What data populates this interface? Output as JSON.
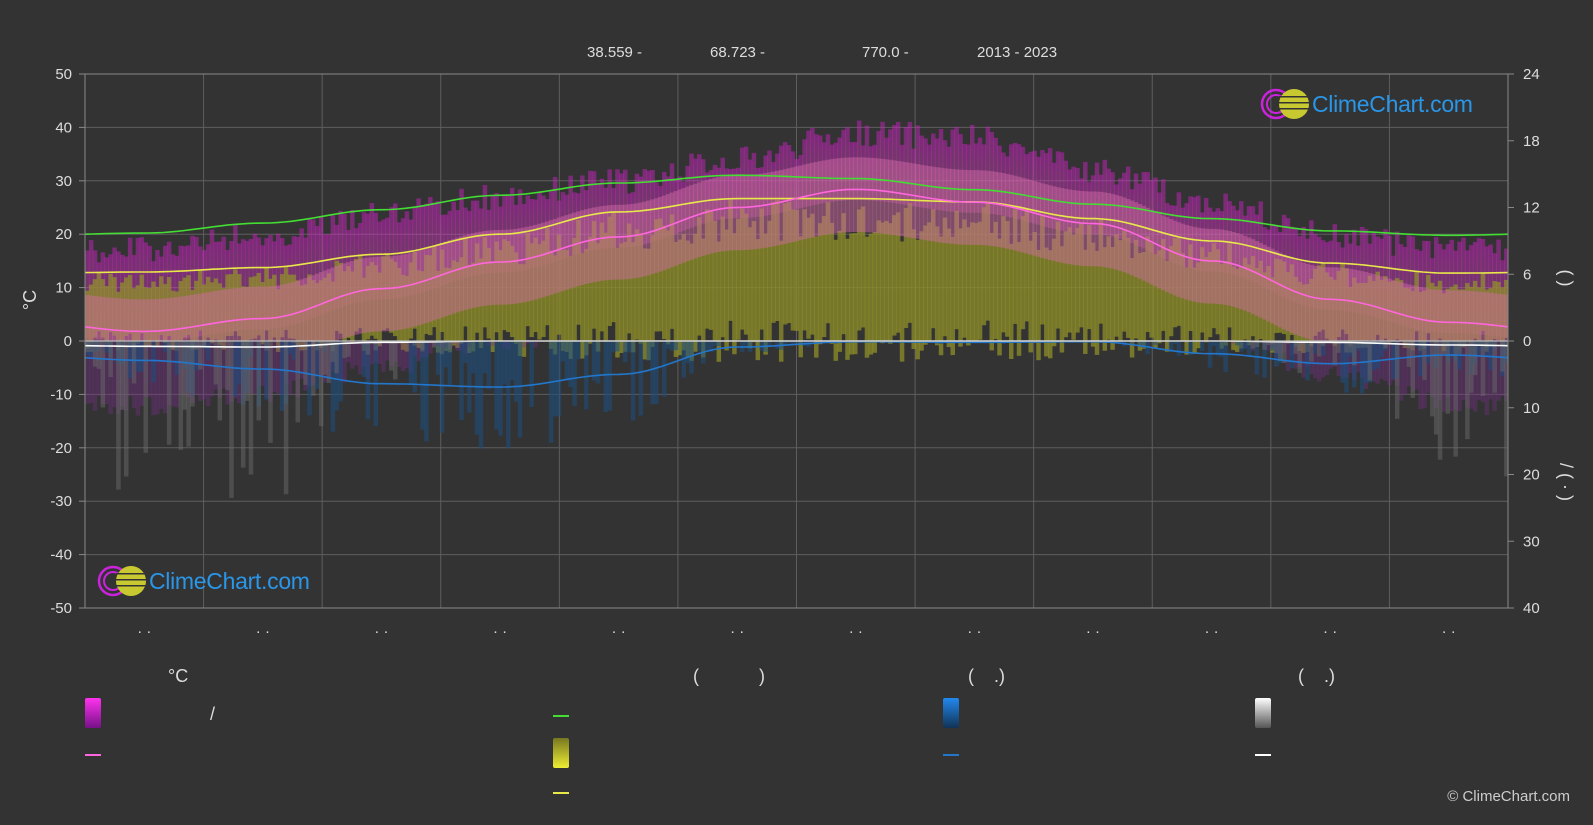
{
  "header": {
    "lat": "38.559 -",
    "lon": "68.723 -",
    "elevation": "770.0 -",
    "years": "2013 - 2023"
  },
  "axes": {
    "left_title": "°C",
    "right_top_title": "(    )",
    "right_bottom_title": "/    (  ·  )"
  },
  "brand": {
    "name": "ClimeChart.com",
    "copyright": "© ClimeChart.com"
  },
  "colors": {
    "background": "#333333",
    "grid": "#5e5e5e",
    "daylight": "#44dd33",
    "sunshine": "#e8e84a",
    "temp_max_band": "#e020c8",
    "temp_mean": "#ff66dd",
    "precip": "#2277cc",
    "snow": "#ffffff",
    "brand": "#2a96e8"
  },
  "legend": {
    "col1": {
      "heading": "°C",
      "item1": "                    /",
      "item2": ""
    },
    "col2": {
      "heading": "(            )",
      "item1": "",
      "item2": "",
      "item3": ""
    },
    "col3": {
      "heading": "(    .)",
      "item1": "",
      "item2": ""
    },
    "col4": {
      "heading": "(    .)",
      "item1": "",
      "item2": ""
    }
  },
  "chart_data": {
    "type": "line",
    "months": [
      "· ·",
      "· ·",
      "· ·",
      "· ·",
      "· ·",
      "· ·",
      "· ·",
      "· ·",
      "· ·",
      "· ·",
      "· ·",
      "· ·"
    ],
    "y_left": {
      "min": -50,
      "max": 50,
      "ticks": [
        50,
        40,
        30,
        20,
        10,
        0,
        -10,
        -20,
        -30,
        -40,
        -50
      ],
      "unit": "°C"
    },
    "y_right_top": {
      "ticks": [
        24,
        18,
        12,
        6,
        0
      ]
    },
    "y_right_bottom": {
      "ticks": [
        10,
        20,
        30,
        40
      ]
    },
    "series": [
      {
        "key": "daylight_hours",
        "values": [
          9.7,
          10.6,
          11.8,
          13.1,
          14.2,
          14.9,
          14.6,
          13.6,
          12.3,
          11.0,
          9.9,
          9.5
        ]
      },
      {
        "key": "sunshine_hours",
        "values": [
          6.2,
          6.6,
          7.8,
          9.6,
          11.6,
          12.8,
          12.8,
          12.5,
          11.0,
          9.0,
          7.0,
          6.1
        ]
      },
      {
        "key": "temp_mean",
        "values": [
          1.8,
          4.2,
          9.8,
          14.8,
          19.5,
          25.0,
          28.4,
          26.0,
          22.0,
          15.0,
          7.8,
          3.5
        ]
      },
      {
        "key": "precip_mm",
        "values": [
          2.9,
          4.2,
          6.4,
          6.9,
          5.0,
          0.9,
          0.1,
          0.2,
          0.1,
          1.9,
          3.4,
          2.1
        ]
      },
      {
        "key": "snow_mm",
        "values": [
          0.8,
          0.9,
          0.2,
          0.0,
          0.0,
          0.0,
          0.0,
          0.0,
          0.0,
          0.0,
          0.2,
          0.6
        ]
      }
    ],
    "bands": {
      "temp_max_envelope_top": [
        17,
        20,
        24,
        27,
        30,
        34,
        39,
        38,
        32,
        26,
        20,
        17
      ],
      "temp_min_envelope_bottom": [
        -12,
        -10,
        -5,
        0,
        3,
        10,
        15,
        14,
        8,
        2,
        -6,
        -12
      ]
    }
  }
}
